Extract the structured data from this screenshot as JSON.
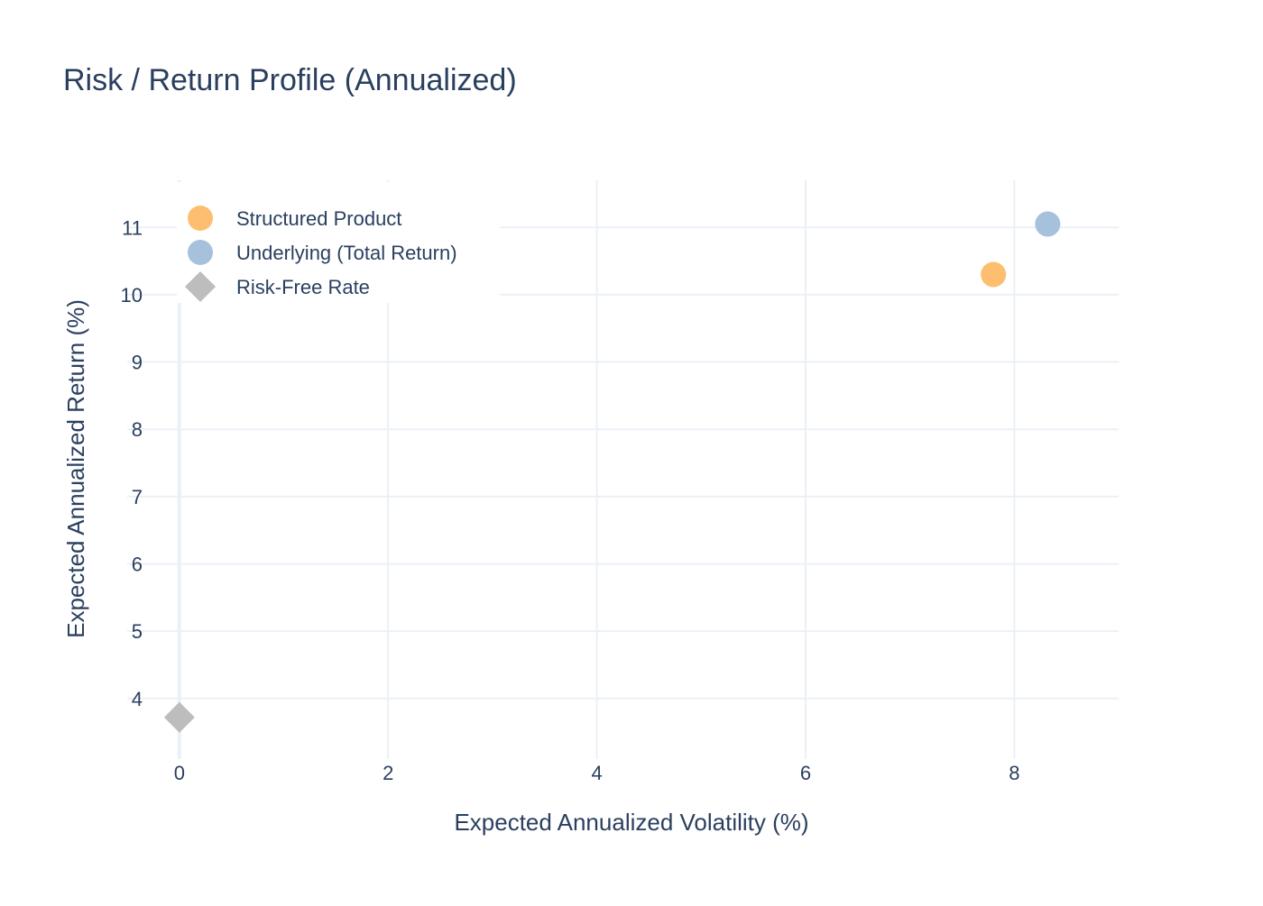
{
  "chart_data": {
    "type": "scatter",
    "title": "Risk / Return Profile (Annualized)",
    "xlabel": "Expected Annualized Volatility (%)",
    "ylabel": "Expected Annualized Return (%)",
    "xlim": [
      -0.5,
      9.0
    ],
    "ylim": [
      3.1,
      11.7
    ],
    "x_ticks": [
      0,
      2,
      4,
      6,
      8
    ],
    "y_ticks": [
      4,
      5,
      6,
      7,
      8,
      9,
      10,
      11
    ],
    "grid": true,
    "legend_position": "top-left",
    "series": [
      {
        "name": "Structured Product",
        "marker": "circle",
        "color": "#fdbf6f",
        "points": [
          {
            "x": 7.8,
            "y": 10.3
          }
        ]
      },
      {
        "name": "Underlying (Total Return)",
        "marker": "circle",
        "color": "#a6c1dc",
        "points": [
          {
            "x": 8.32,
            "y": 11.05
          }
        ]
      },
      {
        "name": "Risk-Free Rate",
        "marker": "diamond",
        "color": "#bdbdbd",
        "points": [
          {
            "x": 0.0,
            "y": 3.72
          }
        ]
      }
    ]
  },
  "colors": {
    "text": "#2a3f5f",
    "grid": "#ebf0f8",
    "zeroline": "#ebf0f8",
    "background": "#ffffff"
  }
}
